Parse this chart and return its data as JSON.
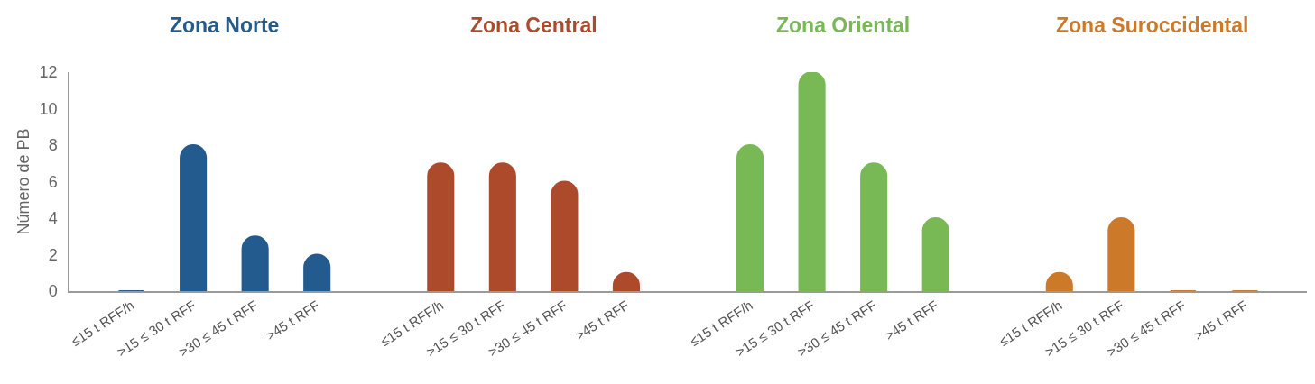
{
  "chart_data": {
    "type": "bar",
    "categories": [
      "≤15 t RFF/h",
      ">15 ≤ 30 t RFF",
      ">30 ≤ 45 t RFF",
      ">45 t RFF",
      null,
      "≤15 t RFF/h",
      ">15 ≤ 30 t RFF",
      ">30 ≤ 45 t RFF",
      ">45 t RFF",
      null,
      "≤15 t RFF/h",
      ">15 ≤ 30 t RFF",
      ">30 ≤ 45 t RFF",
      ">45 t RFF",
      null,
      "≤15 t RFF/h",
      ">15 ≤ 30 t RFF",
      ">30 ≤ 45 t RFF",
      ">45 t RFF"
    ],
    "series": [
      {
        "name": "Zona Norte",
        "color": "#235b8e",
        "values": [
          0,
          8,
          3,
          2,
          null,
          null,
          null,
          null,
          null,
          null,
          null,
          null,
          null,
          null,
          null,
          null,
          null,
          null,
          null
        ]
      },
      {
        "name": "Zona Central",
        "color": "#ad4a2c",
        "values": [
          null,
          null,
          null,
          null,
          null,
          7,
          7,
          6,
          1,
          null,
          null,
          null,
          null,
          null,
          null,
          null,
          null,
          null,
          null
        ]
      },
      {
        "name": "Zona Oriental",
        "color": "#79b955",
        "values": [
          null,
          null,
          null,
          null,
          null,
          null,
          null,
          null,
          null,
          null,
          8,
          12,
          7,
          4,
          null,
          null,
          null,
          null,
          null
        ]
      },
      {
        "name": "Zona Suroccidental",
        "color": "#cc7a29",
        "values": [
          null,
          null,
          null,
          null,
          null,
          null,
          null,
          null,
          null,
          null,
          null,
          null,
          null,
          null,
          null,
          1,
          4,
          0,
          0
        ]
      }
    ],
    "ylabel": "Número de PB",
    "ylim": [
      0,
      12
    ],
    "yticks": [
      0,
      2,
      4,
      6,
      8,
      10,
      12
    ]
  }
}
